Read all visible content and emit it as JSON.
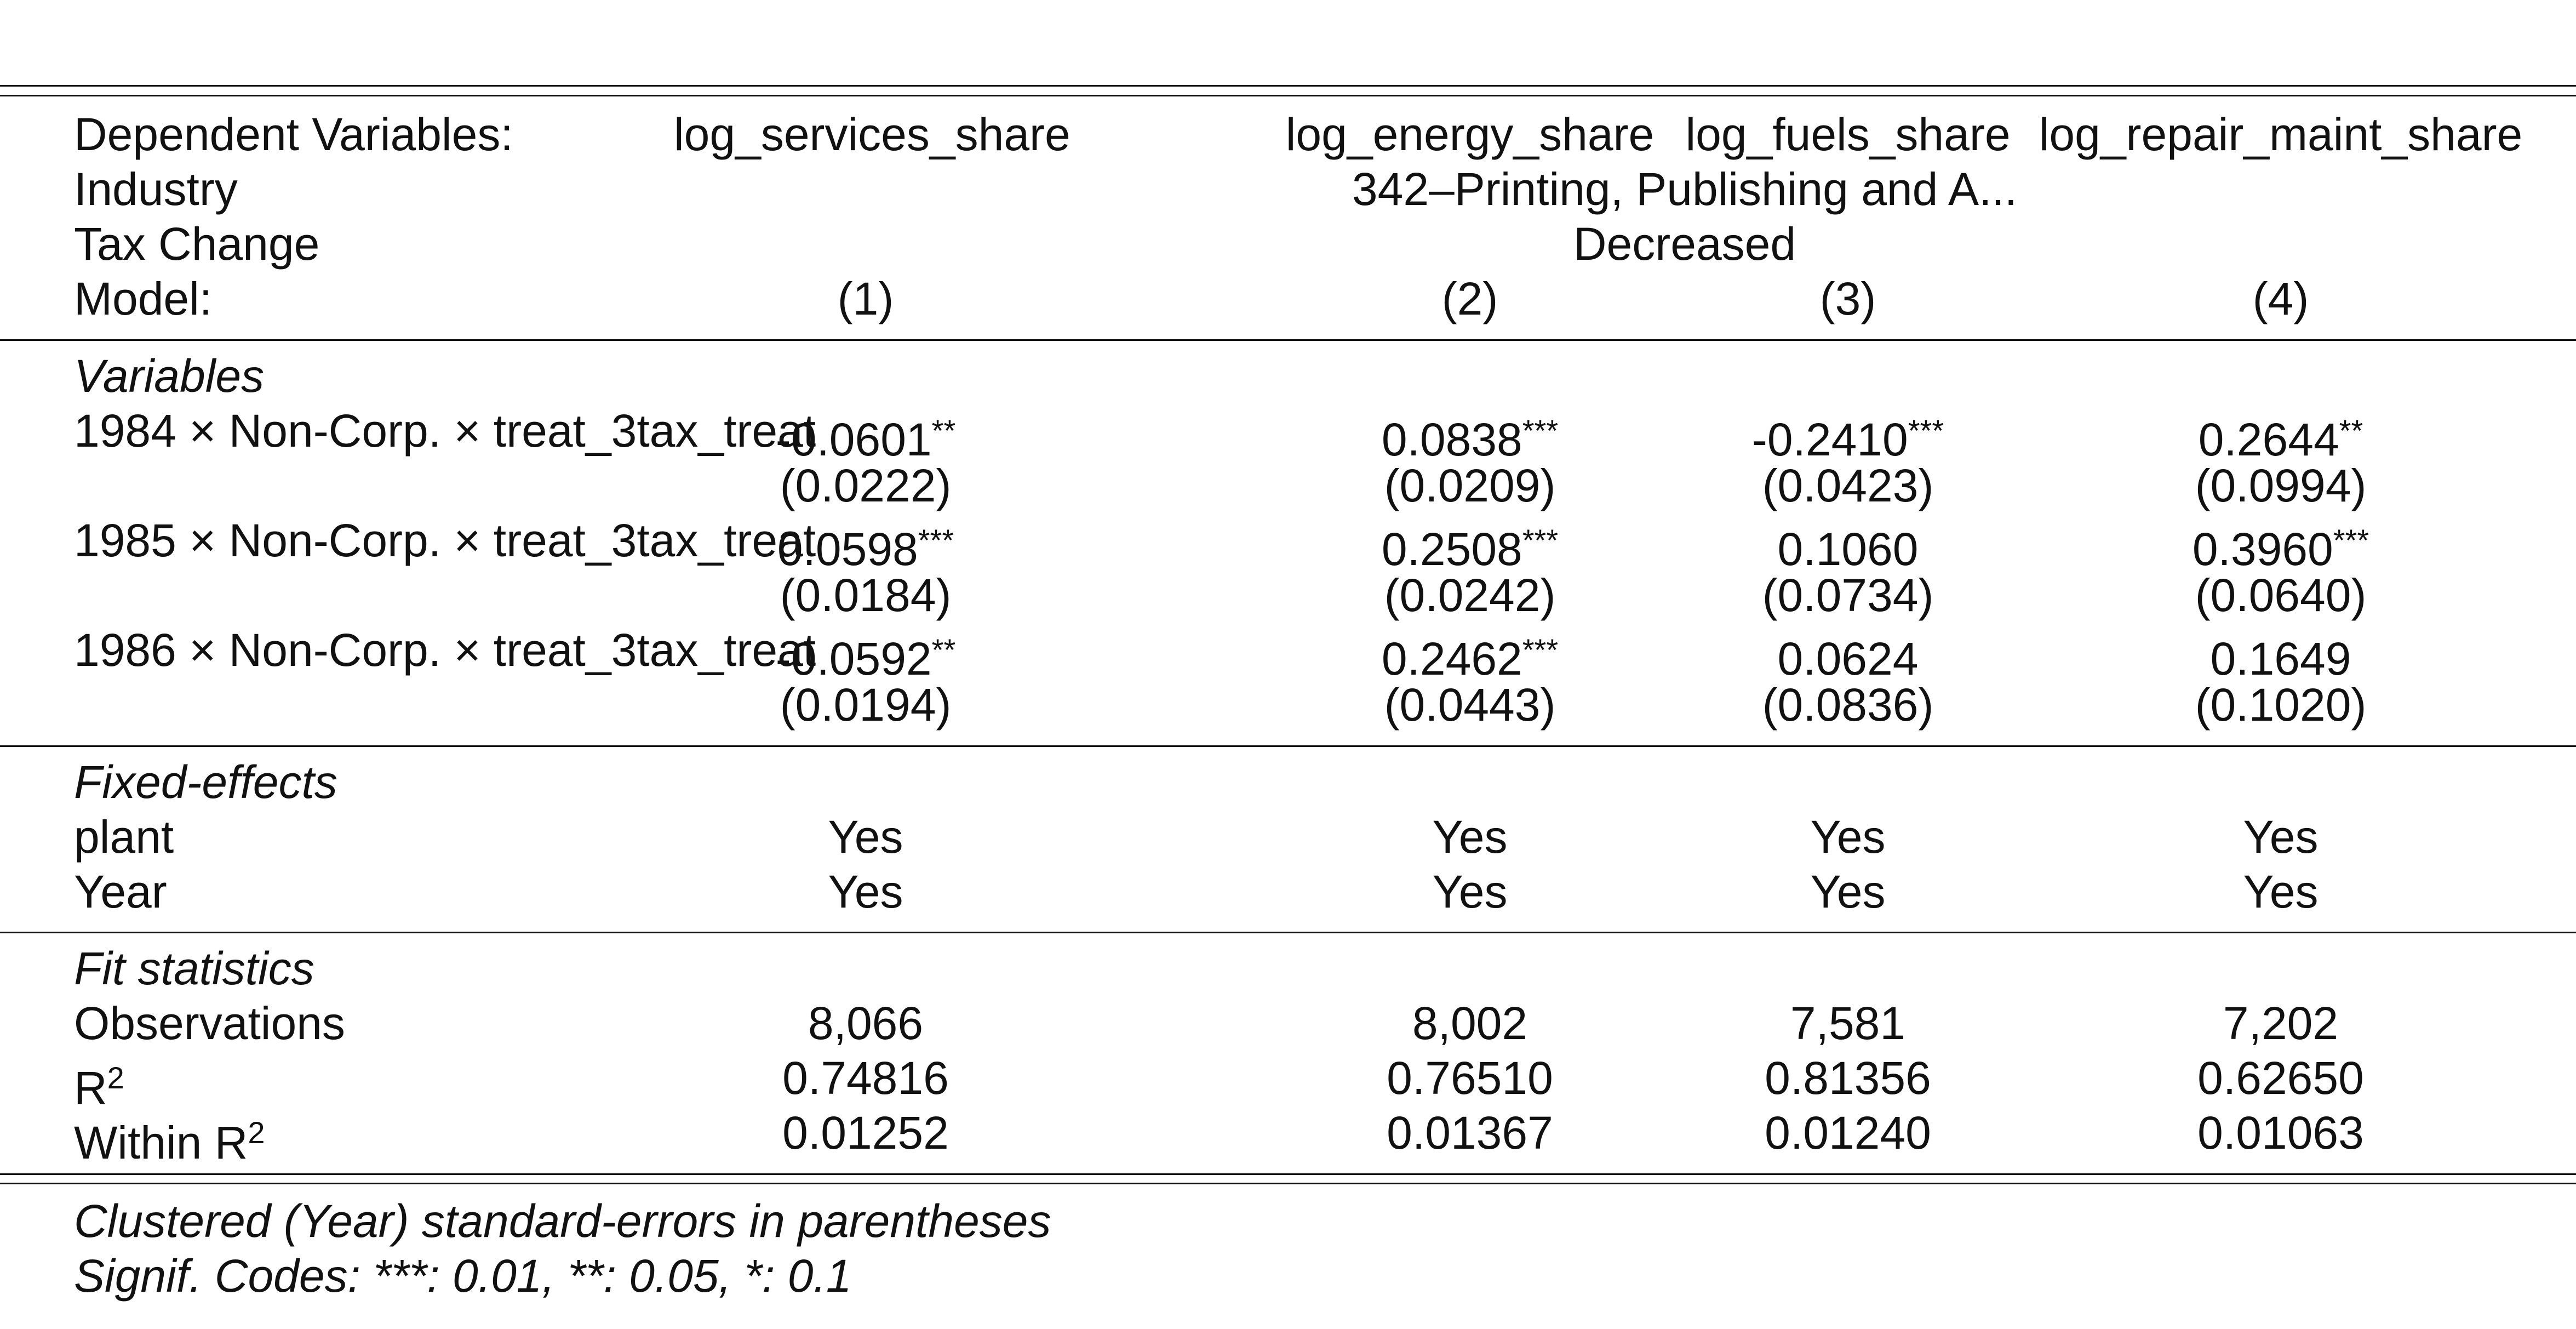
{
  "header": {
    "dep_label": "Dependent Variables:",
    "industry_label": "Industry",
    "tax_label": "Tax Change",
    "model_label": "Model:",
    "dep_vars": [
      "log_services_share",
      "log_energy_share",
      "log_fuels_share",
      "log_repair_maint_share"
    ],
    "industry_value": "342–Printing, Publishing and A...",
    "tax_value": "Decreased",
    "models": [
      "(1)",
      "(2)",
      "(3)",
      "(4)"
    ]
  },
  "variables": {
    "section": "Variables",
    "rows": [
      {
        "label": "1984 × Non-Corp. × treat_3tax_treat",
        "coef": [
          "-0.0601",
          "0.0838",
          "-0.2410",
          "0.2644"
        ],
        "stars": [
          "**",
          "***",
          "***",
          "**"
        ],
        "se": [
          "(0.0222)",
          "(0.0209)",
          "(0.0423)",
          "(0.0994)"
        ]
      },
      {
        "label": "1985 × Non-Corp. × treat_3tax_treat",
        "coef": [
          "0.0598",
          "0.2508",
          "0.1060",
          "0.3960"
        ],
        "stars": [
          "***",
          "***",
          "",
          "***"
        ],
        "se": [
          "(0.0184)",
          "(0.0242)",
          "(0.0734)",
          "(0.0640)"
        ]
      },
      {
        "label": "1986 × Non-Corp. × treat_3tax_treat",
        "coef": [
          "-0.0592",
          "0.2462",
          "0.0624",
          "0.1649"
        ],
        "stars": [
          "**",
          "***",
          "",
          ""
        ],
        "se": [
          "(0.0194)",
          "(0.0443)",
          "(0.0836)",
          "(0.1020)"
        ]
      }
    ]
  },
  "fixed_effects": {
    "section": "Fixed-effects",
    "rows": [
      {
        "label": "plant",
        "values": [
          "Yes",
          "Yes",
          "Yes",
          "Yes"
        ]
      },
      {
        "label": "Year",
        "values": [
          "Yes",
          "Yes",
          "Yes",
          "Yes"
        ]
      }
    ]
  },
  "fit": {
    "section": "Fit statistics",
    "observations_label": "Observations",
    "observations": [
      "8,066",
      "8,002",
      "7,581",
      "7,202"
    ],
    "r2_label": "R",
    "r2_sup": "2",
    "r2": [
      "0.74816",
      "0.76510",
      "0.81356",
      "0.62650"
    ],
    "within_label": "Within R",
    "within_sup": "2",
    "within_r2": [
      "0.01252",
      "0.01367",
      "0.01240",
      "0.01063"
    ]
  },
  "notes": {
    "line1": "Clustered (Year) standard-errors in parentheses",
    "line2": "Signif. Codes: ***: 0.01, **: 0.05, *: 0.1"
  }
}
